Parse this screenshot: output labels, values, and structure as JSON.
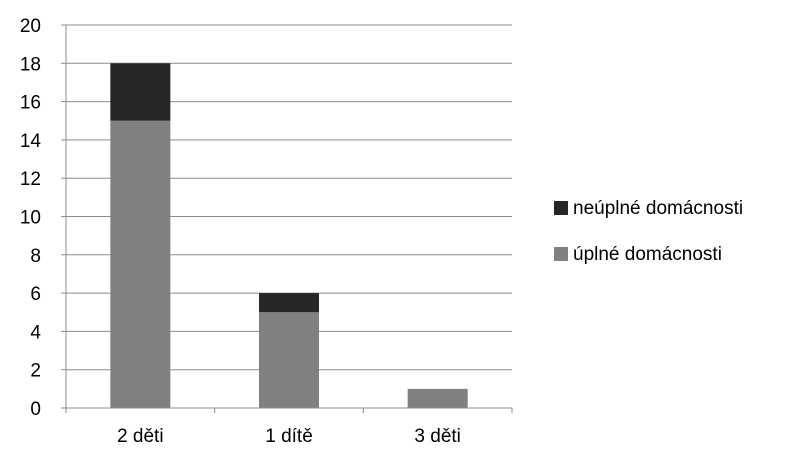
{
  "chart_data": {
    "type": "bar",
    "stacked": true,
    "categories": [
      "2 děti",
      "1 dítě",
      "3 děti"
    ],
    "series": [
      {
        "name": "úplné domácnosti",
        "values": [
          15,
          5,
          1
        ],
        "color": "#808080"
      },
      {
        "name": "neúplné domácnosti",
        "values": [
          3,
          1,
          0
        ],
        "color": "#262626"
      }
    ],
    "title": "",
    "xlabel": "",
    "ylabel": "",
    "ylim": [
      0,
      20
    ],
    "yticks": [
      "0",
      "2",
      "4",
      "6",
      "8",
      "10",
      "12",
      "14",
      "16",
      "18",
      "20"
    ],
    "grid": true,
    "legend": {
      "position": "right",
      "items": [
        "neúplné domácnosti",
        "úplné domácnosti"
      ]
    }
  }
}
